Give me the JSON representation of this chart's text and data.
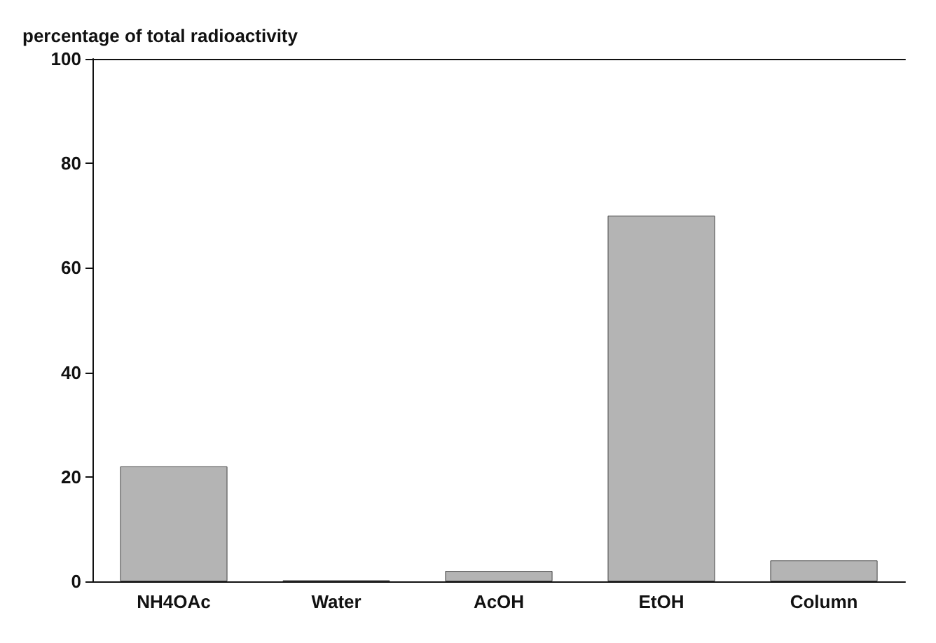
{
  "chart_data": {
    "type": "bar",
    "ylabel": "percentage of total radioactivity",
    "categories": [
      "NH4OAc",
      "Water",
      "AcOH",
      "EtOH",
      "Column"
    ],
    "values": [
      22,
      0.2,
      2,
      70,
      4
    ],
    "color": "#b4b4b4",
    "ylim": [
      0,
      100
    ],
    "yticks": [
      0,
      20,
      40,
      60,
      80,
      100
    ],
    "grid": false
  }
}
